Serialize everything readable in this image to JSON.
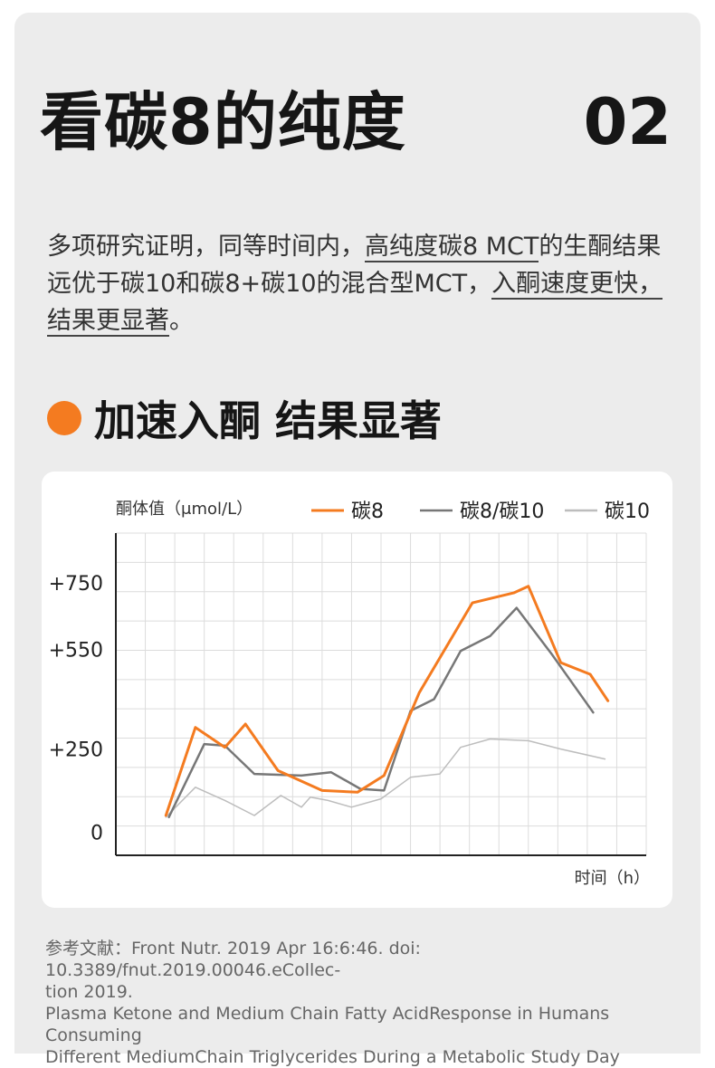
{
  "page": {
    "title": "看碳8的纯度",
    "page_number": "02"
  },
  "intro": {
    "part1": "多项研究证明，同等时间内，",
    "highlight1": "高纯度碳8 MCT",
    "part2": "的生酮结果远优于碳10和碳8+碳10的混合型MCT，",
    "highlight2": "入酮速度更快，结果更显著",
    "part3": "。"
  },
  "section": {
    "title": "加速入酮 结果显著"
  },
  "colors": {
    "accent": "#f47b20",
    "c8_c10": "#777777",
    "c10": "#bdbdbd"
  },
  "chart_data": {
    "type": "line",
    "ylabel": "酮体值（μmol/L）",
    "xlabel": "时间（h）",
    "y_ticks": [
      "+750",
      "+550",
      "+250",
      "0"
    ],
    "y_tick_values": [
      750,
      550,
      250,
      0
    ],
    "ylim": [
      -70,
      900
    ],
    "xlim": [
      0,
      18
    ],
    "grid": true,
    "legend_position": "top-right",
    "series": [
      {
        "name": "碳8",
        "color": "#f47b20",
        "points": [
          [
            1.7,
            50
          ],
          [
            2.7,
            315
          ],
          [
            3.7,
            255
          ],
          [
            4.4,
            325
          ],
          [
            5.5,
            185
          ],
          [
            7.0,
            125
          ],
          [
            8.2,
            120
          ],
          [
            9.1,
            170
          ],
          [
            10.3,
            420
          ],
          [
            12.1,
            690
          ],
          [
            13.5,
            720
          ],
          [
            14.0,
            740
          ],
          [
            15.1,
            510
          ],
          [
            16.1,
            475
          ],
          [
            16.7,
            395
          ]
        ]
      },
      {
        "name": "碳8/碳10",
        "color": "#777777",
        "points": [
          [
            1.8,
            45
          ],
          [
            3.0,
            265
          ],
          [
            3.7,
            260
          ],
          [
            4.7,
            175
          ],
          [
            6.3,
            170
          ],
          [
            7.3,
            180
          ],
          [
            8.3,
            130
          ],
          [
            9.1,
            125
          ],
          [
            10.0,
            365
          ],
          [
            10.8,
            400
          ],
          [
            11.7,
            545
          ],
          [
            12.7,
            590
          ],
          [
            13.6,
            675
          ],
          [
            14.8,
            535
          ],
          [
            16.2,
            360
          ]
        ]
      },
      {
        "name": "碳10",
        "color": "#bdbdbd",
        "points": [
          [
            1.7,
            45
          ],
          [
            2.7,
            135
          ],
          [
            3.7,
            95
          ],
          [
            4.7,
            50
          ],
          [
            5.6,
            110
          ],
          [
            6.3,
            75
          ],
          [
            6.6,
            105
          ],
          [
            7.2,
            95
          ],
          [
            8.0,
            75
          ],
          [
            9.0,
            100
          ],
          [
            10.0,
            165
          ],
          [
            11.0,
            175
          ],
          [
            11.7,
            255
          ],
          [
            12.7,
            280
          ],
          [
            14.0,
            275
          ],
          [
            15.1,
            250
          ],
          [
            16.6,
            220
          ]
        ]
      }
    ]
  },
  "references": {
    "line1": "参考文献：Front Nutr. 2019 Apr 16:6:46. doi: 10.3389/fnut.2019.00046.eCollec-",
    "line2": "tion 2019.",
    "line3": "Plasma Ketone and Medium Chain Fatty AcidResponse in Humans Consuming",
    "line4": "Different MediumChain Triglycerides During a Metabolic Study Day"
  }
}
